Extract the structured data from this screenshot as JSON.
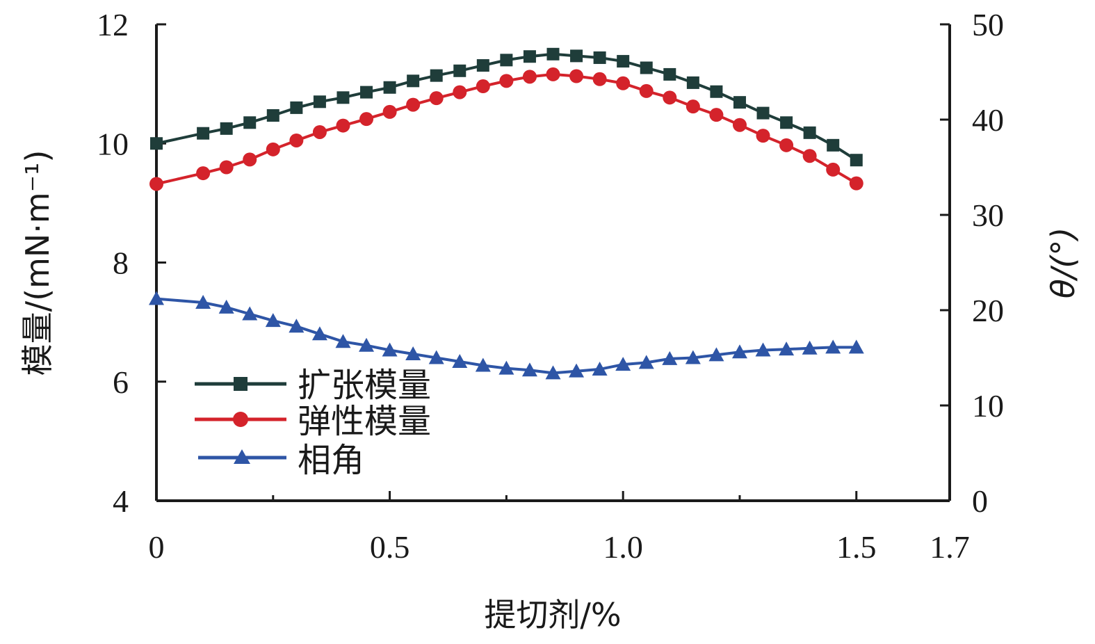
{
  "chart_data": {
    "type": "line",
    "xlabel": "提切剂/%",
    "ylabel": "模量/(mN·m⁻¹)",
    "y2label": "θ/(°)",
    "x_ticks": [
      "0",
      "0.5",
      "1.0",
      "1.5",
      "1.7"
    ],
    "xlim": [
      0,
      1.7
    ],
    "ylim": [
      4,
      12
    ],
    "y_ticks": [
      "4",
      "6",
      "8",
      "10",
      "12"
    ],
    "y2lim": [
      0,
      50
    ],
    "y2_ticks": [
      "0",
      "10",
      "20",
      "30",
      "40",
      "50"
    ],
    "grid": false,
    "legend_position": "bottom-left",
    "series": [
      {
        "name": "扩张模量",
        "axis": "left",
        "marker": "square",
        "color": "#1f3d3a",
        "x": [
          0,
          0.1,
          0.15,
          0.2,
          0.25,
          0.3,
          0.35,
          0.4,
          0.45,
          0.5,
          0.55,
          0.6,
          0.65,
          0.7,
          0.75,
          0.8,
          0.85,
          0.9,
          0.95,
          1.0,
          1.05,
          1.1,
          1.15,
          1.2,
          1.25,
          1.3,
          1.35,
          1.4,
          1.45,
          1.5
        ],
        "y": [
          10.0,
          10.17,
          10.25,
          10.35,
          10.47,
          10.6,
          10.7,
          10.77,
          10.86,
          10.94,
          11.05,
          11.14,
          11.22,
          11.31,
          11.4,
          11.46,
          11.5,
          11.47,
          11.44,
          11.38,
          11.27,
          11.16,
          11.02,
          10.87,
          10.69,
          10.51,
          10.35,
          10.18,
          9.97,
          9.72
        ]
      },
      {
        "name": "弹性模量",
        "axis": "left",
        "marker": "circle",
        "color": "#d4232b",
        "x": [
          0,
          0.1,
          0.15,
          0.2,
          0.25,
          0.3,
          0.35,
          0.4,
          0.45,
          0.5,
          0.55,
          0.6,
          0.65,
          0.7,
          0.75,
          0.8,
          0.85,
          0.9,
          0.95,
          1.0,
          1.05,
          1.1,
          1.15,
          1.2,
          1.25,
          1.3,
          1.35,
          1.4,
          1.45,
          1.5
        ],
        "y": [
          9.32,
          9.5,
          9.6,
          9.73,
          9.9,
          10.05,
          10.19,
          10.3,
          10.41,
          10.53,
          10.65,
          10.76,
          10.86,
          10.96,
          11.05,
          11.12,
          11.16,
          11.13,
          11.08,
          11.01,
          10.88,
          10.77,
          10.62,
          10.48,
          10.31,
          10.13,
          9.97,
          9.79,
          9.56,
          9.33
        ]
      },
      {
        "name": "相角",
        "axis": "right",
        "marker": "triangle",
        "color": "#2e55a6",
        "x": [
          0,
          0.1,
          0.15,
          0.2,
          0.25,
          0.3,
          0.35,
          0.4,
          0.45,
          0.5,
          0.55,
          0.6,
          0.65,
          0.7,
          0.75,
          0.8,
          0.85,
          0.9,
          0.95,
          1.0,
          1.05,
          1.1,
          1.15,
          1.2,
          1.25,
          1.3,
          1.35,
          1.4,
          1.45,
          1.5
        ],
        "y": [
          21.2,
          20.8,
          20.3,
          19.6,
          18.9,
          18.3,
          17.5,
          16.7,
          16.3,
          15.8,
          15.4,
          15.0,
          14.6,
          14.2,
          13.9,
          13.7,
          13.4,
          13.6,
          13.8,
          14.3,
          14.5,
          14.9,
          15.0,
          15.3,
          15.6,
          15.8,
          15.9,
          16.0,
          16.1,
          16.1
        ]
      }
    ]
  }
}
